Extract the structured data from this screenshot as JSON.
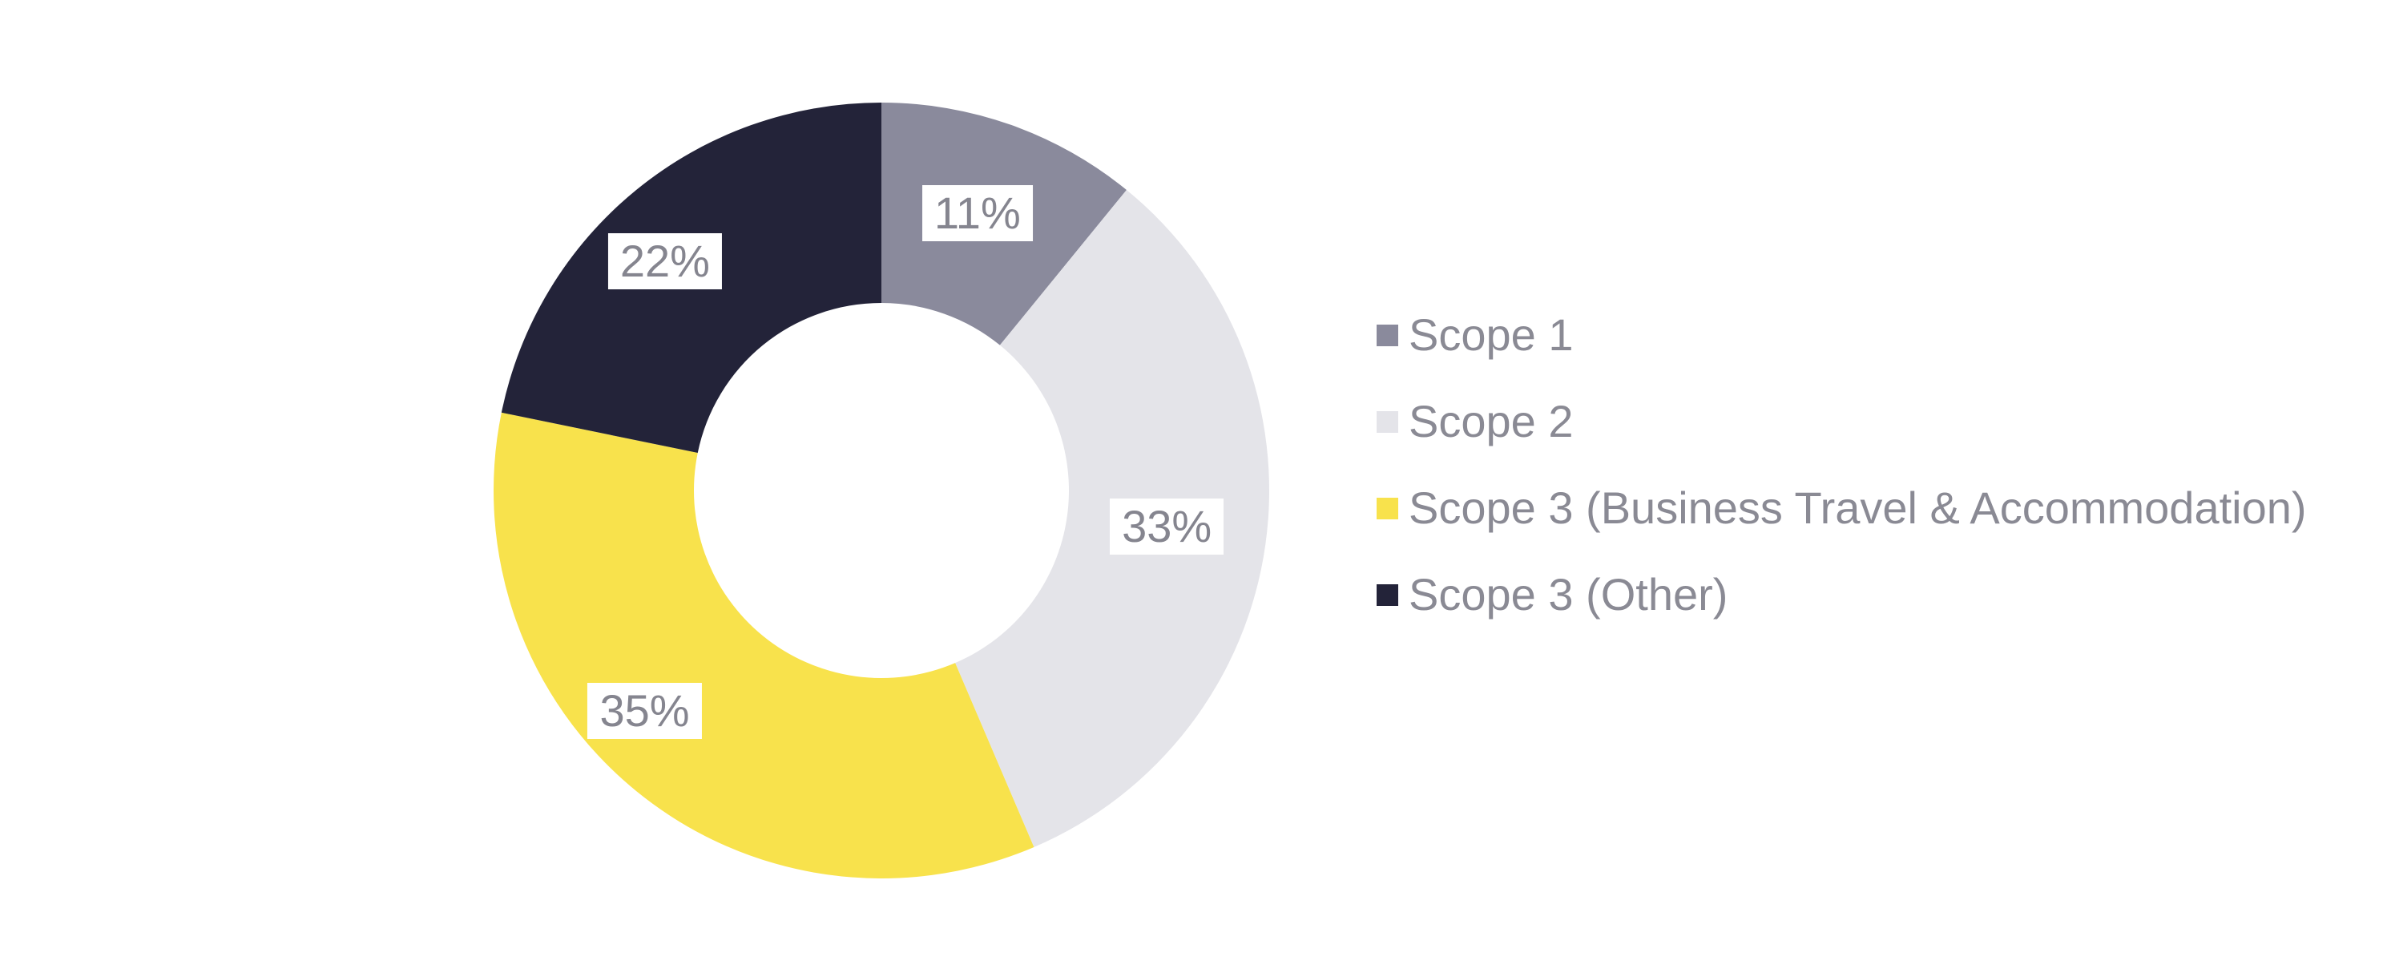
{
  "chart_data": {
    "type": "pie",
    "subtype": "donut",
    "title": "",
    "legend_position": "right",
    "start_angle": "top",
    "direction": "clockwise",
    "label_bg_color": "#FFFFFF",
    "label_text_color": "#85858F",
    "legend_text_color": "#8A8A94",
    "series": [
      {
        "name": "Scope 1",
        "value": 11,
        "label": "11%",
        "color": "#8A8A9C"
      },
      {
        "name": "Scope 2",
        "value": 33,
        "label": "33%",
        "color": "#E4E4E9"
      },
      {
        "name": "Scope 3 (Business Travel & Accommodation)",
        "value": 35,
        "label": "35%",
        "color": "#F8E24C"
      },
      {
        "name": "Scope 3 (Other)",
        "value": 22,
        "label": "22%",
        "color": "#232339"
      }
    ]
  }
}
